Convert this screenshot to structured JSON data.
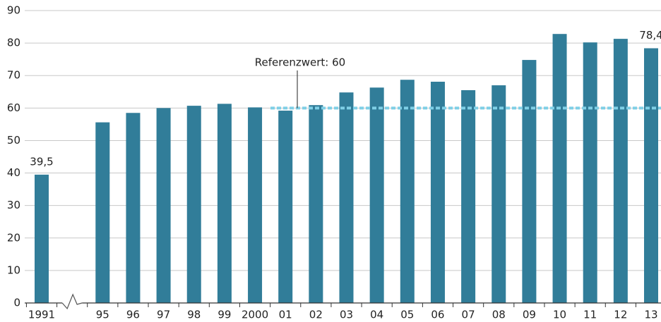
{
  "chart_data": {
    "type": "bar",
    "categories": [
      "1991",
      null,
      "95",
      "96",
      "97",
      "98",
      "99",
      "2000",
      "01",
      "02",
      "03",
      "04",
      "05",
      "06",
      "07",
      "08",
      "09",
      "10",
      "11",
      "12",
      "13"
    ],
    "values": [
      39.5,
      null,
      55.6,
      58.5,
      60,
      60.7,
      61.3,
      60.2,
      59.2,
      60.9,
      64.8,
      66.3,
      68.7,
      68.1,
      65.5,
      67,
      74.8,
      82.8,
      80.2,
      81.3,
      78.4
    ],
    "value_labels": [
      "39,5",
      null,
      null,
      null,
      null,
      null,
      null,
      null,
      null,
      null,
      null,
      null,
      null,
      null,
      null,
      null,
      null,
      null,
      null,
      null,
      "78,4"
    ],
    "color": "#317d99",
    "ylim": [
      0,
      90
    ],
    "yticks": [
      0,
      10,
      20,
      30,
      40,
      50,
      60,
      70,
      80,
      90
    ],
    "grid": true,
    "reference": {
      "value": 60,
      "label": "Referenzwert: 60",
      "color": "#7fcfe6"
    }
  }
}
